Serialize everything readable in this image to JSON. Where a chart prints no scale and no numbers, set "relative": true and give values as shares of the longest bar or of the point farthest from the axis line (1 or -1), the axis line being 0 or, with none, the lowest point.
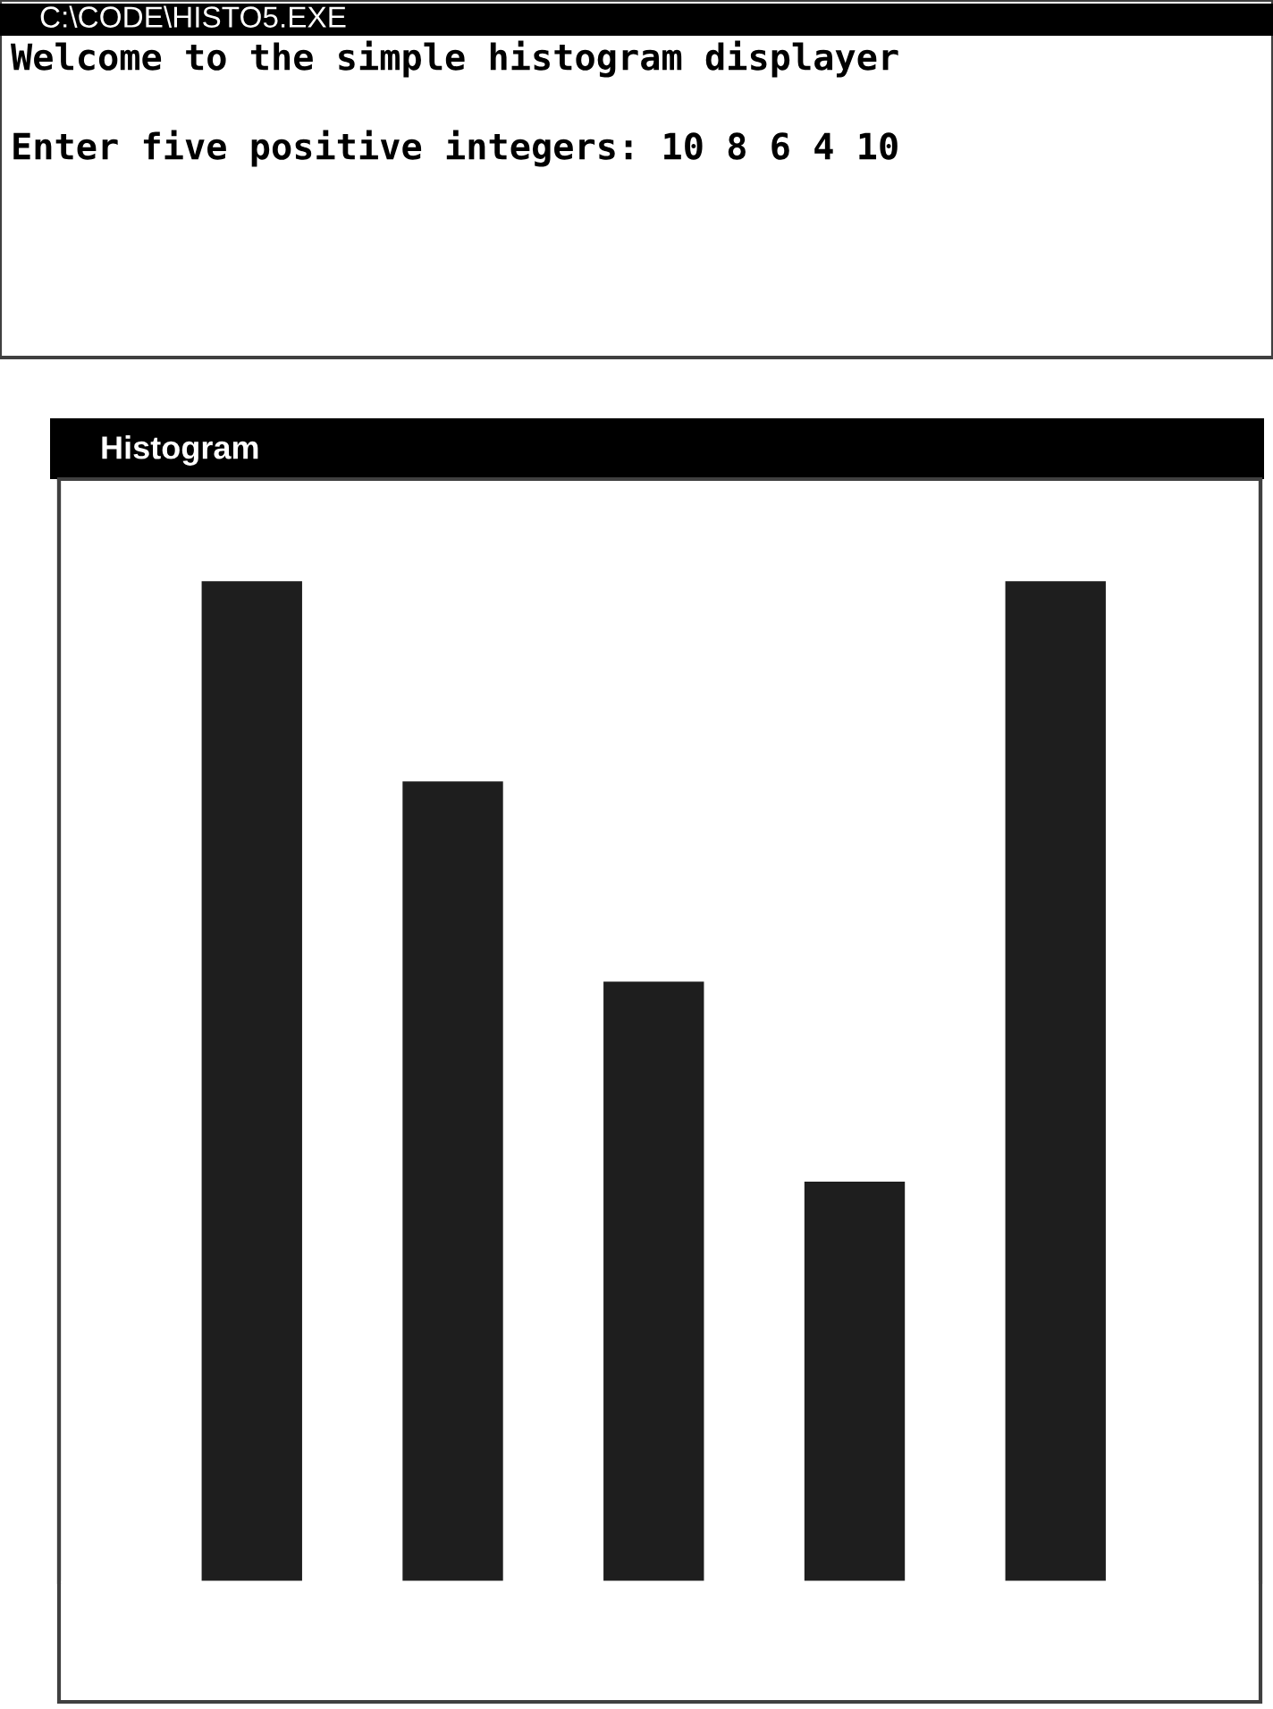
{
  "chart_data": {
    "type": "bar",
    "title": "Histogram",
    "annotations": [
      "C:\\CODE\\HISTO5.EXE",
      "Welcome to the simple histogram displayer",
      "Enter five positive integers: 10 8 6 4 10"
    ],
    "categories": [
      null,
      null,
      null,
      null,
      null
    ],
    "values": [
      1,
      0.8,
      0.6,
      0.4,
      1
    ],
    "color": "#1e1e1e",
    "relative": true
  }
}
